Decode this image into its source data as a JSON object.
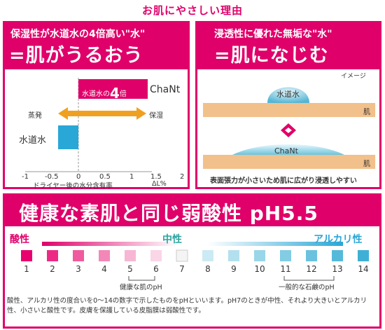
{
  "title": "お肌にやさしい理由",
  "left_panel": {
    "subtitle": "保湿性が水道水の4倍高い\"水\"",
    "headline": "=肌がうるおう",
    "bar_chanT": {
      "label_prefix": "水道水の",
      "label_big": "4",
      "label_suffix": "倍",
      "brand": "ChaNt",
      "value": 1.3
    },
    "bar_tap": {
      "label": "水道水",
      "value": -0.25
    },
    "arrow_left_label": "蒸発",
    "arrow_right_label": "保湿",
    "axis_ticks": [
      "-1",
      "-0.5",
      "0",
      "0.5",
      "1",
      "1.5",
      "2"
    ],
    "axis_caption": "ドライヤー後の水分含有率",
    "axis_unit": "ΔL%",
    "colors": {
      "chanT_bar": "#e0006a",
      "tap_bar": "#29a7d6",
      "arrow": "#f0a020"
    }
  },
  "right_panel": {
    "subtitle": "浸透性に優れた無垢な\"水\"",
    "headline": "=肌になじむ",
    "image_label": "イメージ",
    "drop_top_label": "水道水",
    "drop_bottom_label": "ChaNt",
    "skin_label_top": "肌",
    "skin_label_bottom": "肌",
    "caption": "表面張力が小さいため肌に広がり浸透しやすい",
    "colors": {
      "skin": "#f2c08a",
      "drop": "#6cc3dd"
    }
  },
  "bottom_panel": {
    "headline": "健康な素肌と同じ弱酸性 pH5.5",
    "acid_label": "酸性",
    "neutral_label": "中性",
    "alkali_label": "アルカリ性",
    "ph_values": [
      "1",
      "2",
      "3",
      "4",
      "5",
      "6",
      "7",
      "8",
      "9",
      "10",
      "11",
      "12",
      "13",
      "14"
    ],
    "ph_colors": [
      "#e8006e",
      "#ec2a86",
      "#f05a9e",
      "#f388b8",
      "#f7b6d4",
      "#fad6e7",
      "#f4f4f4",
      "#cbeaf3",
      "#b3e0ee",
      "#9ad6e9",
      "#82cce4",
      "#6bc2df",
      "#55b9da",
      "#3fb0d5"
    ],
    "healthy_skin_label": "健康な肌のpH",
    "soap_label": "一般的な石鹸のpH",
    "note": "酸性、アルカリ性の度合いを0〜14の数字で示したものをpHといいます。pH7のときが中性、それより大きいとアルカリ性、小さいと酸性です。皮膚を保護している皮脂膜は弱酸性です。",
    "colors": {
      "acid": "#e0006a",
      "neutral": "#2aa5a0",
      "alkali": "#29a7d6"
    }
  }
}
